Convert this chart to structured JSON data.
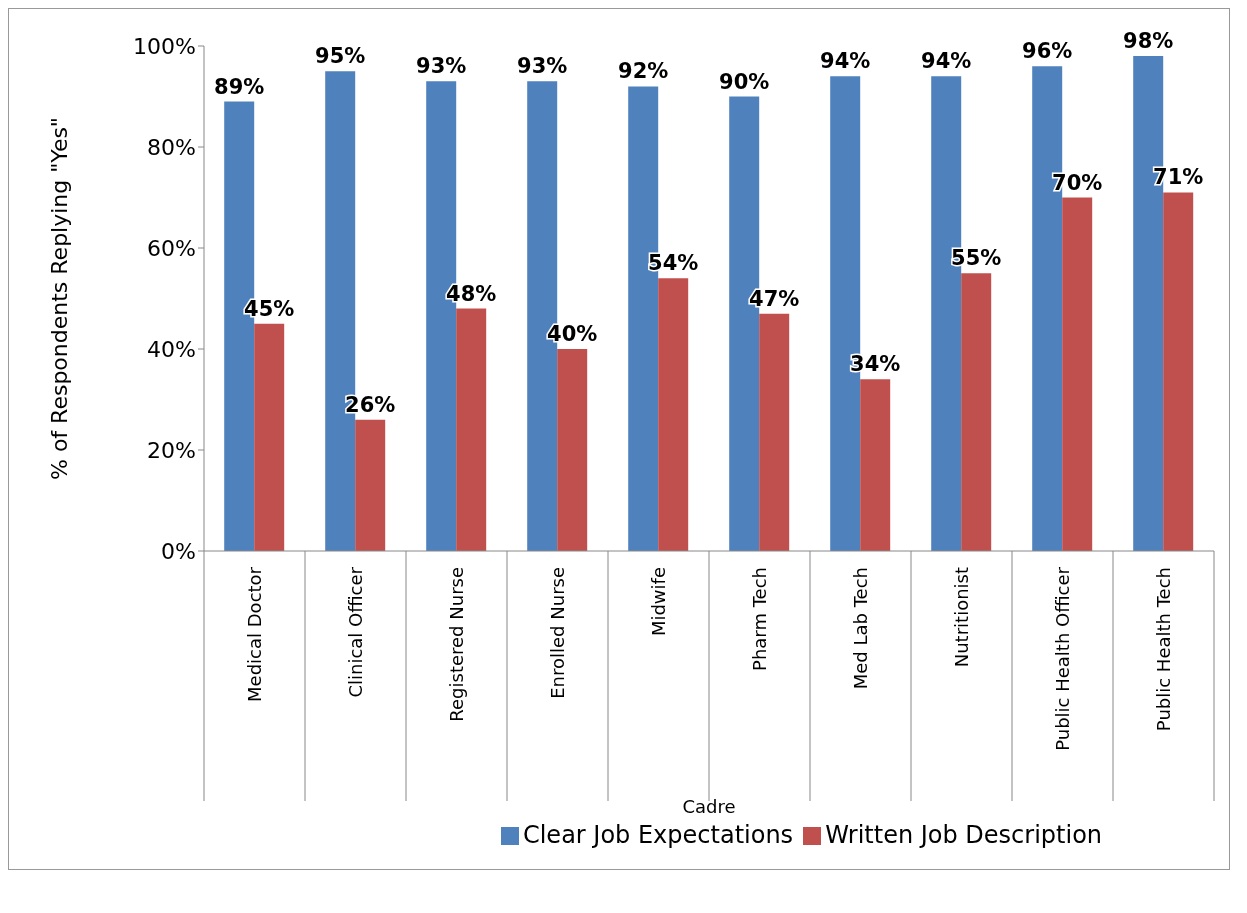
{
  "chart_data": {
    "type": "bar",
    "xlabel": "Cadre",
    "ylabel": "% of Respondents Replying \"Yes\"",
    "categories": [
      "Medical Doctor",
      "Clinical Officer",
      "Registered Nurse",
      "Enrolled Nurse",
      "Midwife",
      "Pharm Tech",
      "Med Lab Tech",
      "Nutritionist",
      "Public Health Officer",
      "Public Health Tech"
    ],
    "series": [
      {
        "name": "Clear Job Expectations",
        "color": "#4f81bd",
        "values": [
          89,
          95,
          93,
          93,
          92,
          90,
          94,
          94,
          96,
          98
        ],
        "value_labels": [
          "89%",
          "95%",
          "93%",
          "93%",
          "92%",
          "90%",
          "94%",
          "94%",
          "96%",
          "98%"
        ]
      },
      {
        "name": "Written Job Description",
        "color": "#c0504d",
        "values": [
          45,
          26,
          48,
          40,
          54,
          47,
          34,
          55,
          70,
          71
        ],
        "value_labels": [
          "45%",
          "26%",
          "48%",
          "40%",
          "54%",
          "47%",
          "34%",
          "55%",
          "70%",
          "71%"
        ]
      }
    ],
    "ylim": [
      0,
      100
    ],
    "yticks": [
      {
        "value": 0,
        "label": "0%"
      },
      {
        "value": 20,
        "label": "20%"
      },
      {
        "value": 40,
        "label": "40%"
      },
      {
        "value": 60,
        "label": "60%"
      },
      {
        "value": 80,
        "label": "80%"
      },
      {
        "value": 100,
        "label": "100%"
      }
    ],
    "legend": "bottom"
  }
}
